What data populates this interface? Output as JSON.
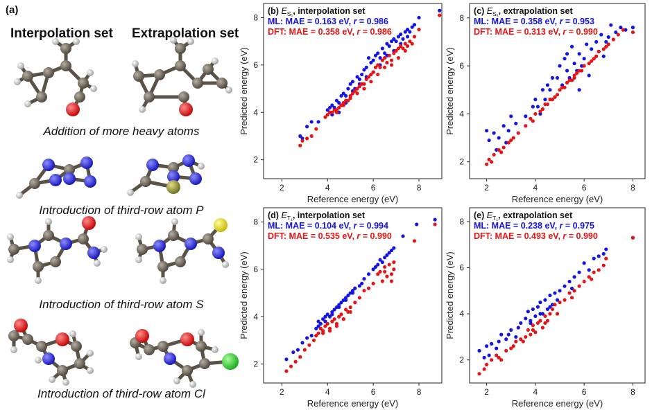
{
  "panel_a": {
    "label": "(a)",
    "col1": "Interpolation set",
    "col2": "Extrapolation set",
    "captions": [
      "Addition of more heavy atoms",
      "Introduction of third-row atom P",
      "Introduction of third-row atom S",
      "Introduction of third-row atom Cl"
    ]
  },
  "colors": {
    "ml": "#1414e6",
    "dft": "#e61414"
  },
  "chart_data": [
    {
      "type": "scatter",
      "panel": "(b)",
      "title_sym": "E",
      "title_sub": "S₁",
      "title_rest": ", interpolation set",
      "ml_label": "ML: MAE = 0.163 eV, ",
      "ml_r": " = 0.986",
      "dft_label": "DFT: MAE = 0.358 eV, ",
      "dft_r": " = 0.986",
      "xlabel": "Reference energy (eV)",
      "ylabel": "Predicted energy (eV)",
      "xlim": [
        1.2,
        9.0
      ],
      "ylim": [
        1.2,
        8.6
      ],
      "xticks": [
        2,
        4,
        6,
        8
      ],
      "yticks": [
        2,
        4,
        6,
        8
      ],
      "series": [
        {
          "name": "ML",
          "color": "ml",
          "x": [
            2.8,
            2.9,
            3.1,
            3.3,
            3.6,
            4.0,
            4.1,
            4.2,
            4.3,
            4.4,
            4.5,
            4.6,
            4.7,
            4.8,
            4.9,
            5.0,
            5.1,
            5.2,
            5.3,
            5.4,
            5.5,
            5.6,
            5.7,
            5.8,
            5.9,
            6.0,
            6.1,
            6.2,
            6.3,
            6.4,
            6.5,
            6.6,
            6.7,
            6.8,
            6.9,
            7.0,
            7.1,
            7.2,
            7.3,
            7.4,
            7.5,
            7.6,
            7.7,
            7.8,
            8.0,
            8.9,
            4.2,
            4.5,
            4.8,
            5.1,
            5.4,
            5.7,
            6.0,
            6.3,
            6.6,
            6.9,
            7.2,
            7.5
          ],
          "y": [
            3.0,
            2.9,
            3.4,
            3.6,
            3.6,
            4.1,
            4.2,
            4.3,
            4.2,
            4.5,
            4.4,
            4.7,
            4.8,
            4.7,
            5.0,
            5.2,
            5.3,
            5.0,
            5.5,
            5.4,
            5.6,
            5.8,
            5.9,
            6.3,
            6.1,
            6.2,
            6.4,
            6.5,
            6.3,
            6.7,
            6.5,
            6.9,
            6.8,
            7.0,
            7.1,
            7.0,
            7.2,
            7.3,
            7.1,
            7.4,
            7.5,
            7.4,
            7.6,
            7.7,
            8.0,
            8.3,
            3.9,
            4.0,
            4.4,
            4.9,
            5.2,
            5.5,
            5.7,
            6.0,
            6.4,
            6.6,
            6.9,
            7.2
          ]
        },
        {
          "name": "DFT",
          "color": "dft",
          "x": [
            2.8,
            2.9,
            3.1,
            3.3,
            3.5,
            3.9,
            4.0,
            4.2,
            4.3,
            4.4,
            4.5,
            4.6,
            4.7,
            4.8,
            4.9,
            5.0,
            5.1,
            5.2,
            5.3,
            5.4,
            5.5,
            5.6,
            5.7,
            5.8,
            5.9,
            6.0,
            6.1,
            6.2,
            6.3,
            6.4,
            6.5,
            6.6,
            6.7,
            6.8,
            6.9,
            7.0,
            7.1,
            7.2,
            7.3,
            7.4,
            7.5,
            7.6,
            7.8,
            8.0,
            8.9,
            4.1,
            4.4,
            4.7,
            5.0,
            5.3,
            5.6,
            5.9,
            6.2,
            6.5,
            6.8,
            7.1,
            7.4,
            7.7
          ],
          "y": [
            2.6,
            2.8,
            2.9,
            3.0,
            3.3,
            3.8,
            3.9,
            4.0,
            4.1,
            4.0,
            4.2,
            4.3,
            4.4,
            4.5,
            4.5,
            4.7,
            4.8,
            4.9,
            5.0,
            5.1,
            5.2,
            5.2,
            5.4,
            5.5,
            5.6,
            5.7,
            5.9,
            6.0,
            5.9,
            6.2,
            6.3,
            6.1,
            6.4,
            6.2,
            6.5,
            6.6,
            6.7,
            6.8,
            6.7,
            6.9,
            6.8,
            7.0,
            7.2,
            7.5,
            8.1,
            4.0,
            4.1,
            4.3,
            4.6,
            4.8,
            5.0,
            5.3,
            5.6,
            5.9,
            6.0,
            6.3,
            6.6,
            6.9
          ]
        }
      ]
    },
    {
      "type": "scatter",
      "panel": "(c)",
      "title_sym": "E",
      "title_sub": "S₁",
      "title_rest": ", extrapolation set",
      "ml_label": "ML: MAE = 0.358 eV, ",
      "ml_r": " = 0.953",
      "dft_label": "DFT: MAE = 0.313 eV, ",
      "dft_r": " = 0.990",
      "xlabel": "Reference energy (eV)",
      "ylabel": "Predicted energy (eV)",
      "xlim": [
        1.3,
        8.5
      ],
      "ylim": [
        1.3,
        8.6
      ],
      "xticks": [
        2,
        4,
        6,
        8
      ],
      "yticks": [
        2,
        4,
        6,
        8
      ],
      "series": [
        {
          "name": "ML",
          "color": "ml",
          "x": [
            2.0,
            2.1,
            2.3,
            2.5,
            2.7,
            2.9,
            3.0,
            3.2,
            3.6,
            3.9,
            4.0,
            4.1,
            4.3,
            4.4,
            4.5,
            4.6,
            4.8,
            4.9,
            5.0,
            5.1,
            5.2,
            5.3,
            5.4,
            5.5,
            5.6,
            5.7,
            5.8,
            5.9,
            6.0,
            6.1,
            6.3,
            6.5,
            6.6,
            6.7,
            6.9,
            7.0,
            7.1,
            7.3,
            7.5,
            7.7,
            8.0,
            2.4,
            2.8,
            4.2,
            4.7,
            5.3,
            5.8,
            6.2,
            6.8
          ],
          "y": [
            3.3,
            2.9,
            3.2,
            3.0,
            3.5,
            3.3,
            3.9,
            3.6,
            3.9,
            4.3,
            4.6,
            4.3,
            5.0,
            4.6,
            5.2,
            5.0,
            4.7,
            5.5,
            6.0,
            5.2,
            6.3,
            5.8,
            5.5,
            6.8,
            6.1,
            5.8,
            6.5,
            6.0,
            6.3,
            6.9,
            6.7,
            7.0,
            6.6,
            7.3,
            7.0,
            7.2,
            7.7,
            7.4,
            7.6,
            7.5,
            7.6,
            2.5,
            2.8,
            4.0,
            5.5,
            6.5,
            5.0,
            5.6,
            6.4
          ]
        },
        {
          "name": "DFT",
          "color": "dft",
          "x": [
            2.0,
            2.1,
            2.3,
            2.5,
            2.7,
            2.9,
            3.0,
            3.3,
            3.6,
            3.9,
            4.0,
            4.2,
            4.3,
            4.4,
            4.5,
            4.6,
            4.8,
            4.9,
            5.0,
            5.1,
            5.2,
            5.3,
            5.4,
            5.5,
            5.6,
            5.7,
            5.8,
            5.9,
            6.0,
            6.2,
            6.4,
            6.5,
            6.6,
            6.8,
            7.0,
            7.2,
            7.4,
            7.6,
            8.0,
            2.2,
            2.6,
            3.1,
            3.8,
            4.7,
            5.6,
            6.3,
            6.9
          ],
          "y": [
            1.9,
            2.1,
            2.3,
            2.5,
            2.6,
            2.8,
            2.9,
            3.2,
            3.5,
            3.7,
            4.0,
            4.1,
            4.2,
            4.4,
            4.4,
            4.6,
            4.7,
            4.8,
            5.0,
            5.1,
            5.1,
            5.3,
            5.4,
            5.4,
            5.6,
            5.7,
            5.8,
            5.8,
            6.0,
            6.1,
            6.3,
            6.4,
            6.6,
            6.7,
            6.9,
            7.1,
            7.3,
            7.5,
            7.4,
            2.0,
            2.4,
            3.0,
            3.8,
            4.6,
            5.5,
            6.2,
            6.8
          ]
        }
      ]
    },
    {
      "type": "scatter",
      "panel": "(d)",
      "title_sym": "E",
      "title_sub": "T₁",
      "title_rest": ", interpolation set",
      "ml_label": "ML: MAE = 0.104 eV, ",
      "ml_r": " = 0.994",
      "dft_label": "DFT: MAE = 0.535 eV, ",
      "dft_r": " = 0.990",
      "xlabel": "Reference energy (eV)",
      "ylabel": "Predicted energy (eV)",
      "xlim": [
        1.2,
        9.0
      ],
      "ylim": [
        1.2,
        8.6
      ],
      "xticks": [
        2,
        4,
        6,
        8
      ],
      "yticks": [
        2,
        4,
        6,
        8
      ],
      "series": [
        {
          "name": "ML",
          "color": "ml",
          "x": [
            2.2,
            2.5,
            2.7,
            2.9,
            3.1,
            3.3,
            3.5,
            3.6,
            3.7,
            3.8,
            3.9,
            4.0,
            4.1,
            4.2,
            4.3,
            4.4,
            4.5,
            4.6,
            4.7,
            4.8,
            4.9,
            5.0,
            5.1,
            5.2,
            5.4,
            5.6,
            5.8,
            6.0,
            6.2,
            6.3,
            6.4,
            6.5,
            6.6,
            6.7,
            6.8,
            6.9,
            7.3,
            7.9,
            8.7,
            3.6,
            3.9,
            4.2,
            4.5,
            4.8,
            5.1,
            5.5,
            6.1
          ],
          "y": [
            2.2,
            2.5,
            2.6,
            2.9,
            3.1,
            3.2,
            3.5,
            3.8,
            3.7,
            3.9,
            4.0,
            4.1,
            4.0,
            4.2,
            4.3,
            4.4,
            4.5,
            4.6,
            4.7,
            4.8,
            4.9,
            5.0,
            5.1,
            5.2,
            5.3,
            5.6,
            5.8,
            6.0,
            6.2,
            6.4,
            6.3,
            6.5,
            6.6,
            6.7,
            6.8,
            6.9,
            7.4,
            7.9,
            8.1,
            3.6,
            3.8,
            4.1,
            4.4,
            4.7,
            5.0,
            5.4,
            6.1
          ]
        },
        {
          "name": "DFT",
          "color": "dft",
          "x": [
            2.2,
            2.4,
            2.6,
            2.8,
            3.0,
            3.2,
            3.4,
            3.6,
            3.7,
            3.8,
            3.9,
            4.0,
            4.1,
            4.2,
            4.3,
            4.4,
            4.5,
            4.6,
            4.7,
            4.8,
            4.9,
            5.0,
            5.2,
            5.4,
            5.6,
            5.8,
            6.0,
            6.2,
            6.3,
            6.4,
            6.5,
            6.6,
            6.7,
            6.8,
            6.9,
            7.8,
            8.7,
            3.5,
            3.8,
            4.1,
            4.4,
            4.7,
            5.0,
            6.5,
            6.8,
            6.9
          ],
          "y": [
            1.7,
            1.9,
            2.1,
            2.3,
            2.6,
            2.8,
            3.0,
            3.3,
            3.5,
            3.4,
            3.6,
            3.7,
            3.5,
            3.8,
            3.9,
            3.7,
            4.0,
            4.1,
            3.9,
            4.3,
            4.2,
            4.4,
            4.6,
            4.8,
            5.1,
            5.2,
            5.4,
            5.8,
            5.9,
            5.5,
            6.1,
            5.7,
            6.2,
            5.8,
            6.3,
            7.2,
            7.9,
            3.2,
            3.3,
            3.4,
            3.6,
            3.9,
            4.2,
            5.9,
            5.5,
            6.0
          ]
        }
      ]
    },
    {
      "type": "scatter",
      "panel": "(e)",
      "title_sym": "E",
      "title_sub": "T₁",
      "title_rest": ", extrapolation set",
      "ml_label": "ML: MAE = 0.238 eV, ",
      "ml_r": " = 0.975",
      "dft_label": "DFT: MAE = 0.493 eV, ",
      "dft_r": " = 0.990",
      "xlabel": "Reference energy (eV)",
      "ylabel": "Predicted energy (eV)",
      "xlim": [
        1.3,
        8.5
      ],
      "ylim": [
        1.0,
        8.6
      ],
      "xticks": [
        2,
        4,
        6,
        8
      ],
      "yticks": [
        2,
        4,
        6,
        8
      ],
      "series": [
        {
          "name": "ML",
          "color": "ml",
          "x": [
            1.7,
            1.9,
            2.0,
            2.2,
            2.4,
            2.6,
            2.8,
            3.0,
            3.2,
            3.4,
            3.6,
            3.7,
            3.8,
            3.9,
            4.0,
            4.1,
            4.2,
            4.3,
            4.4,
            4.5,
            4.6,
            4.7,
            4.8,
            4.9,
            5.0,
            5.2,
            5.4,
            5.6,
            5.8,
            6.0,
            6.2,
            6.4,
            6.6,
            6.8,
            6.9,
            8.0,
            2.1,
            2.5,
            2.9,
            3.3,
            3.8,
            4.2,
            4.6,
            5.5
          ],
          "y": [
            2.4,
            2.1,
            2.6,
            2.7,
            2.5,
            3.1,
            2.9,
            3.3,
            3.0,
            3.6,
            3.8,
            4.1,
            3.7,
            4.2,
            3.9,
            4.3,
            4.5,
            4.0,
            4.6,
            4.2,
            4.8,
            4.4,
            4.9,
            4.6,
            5.0,
            5.2,
            5.4,
            5.6,
            5.8,
            6.2,
            5.9,
            6.4,
            6.5,
            6.6,
            6.8,
            7.3,
            2.2,
            2.8,
            3.1,
            3.4,
            3.6,
            4.0,
            4.3,
            5.1
          ]
        },
        {
          "name": "DFT",
          "color": "dft",
          "x": [
            1.7,
            1.9,
            2.0,
            2.2,
            2.4,
            2.6,
            2.8,
            3.0,
            3.2,
            3.4,
            3.6,
            3.7,
            3.8,
            3.9,
            4.0,
            4.1,
            4.2,
            4.3,
            4.4,
            4.5,
            4.6,
            4.7,
            4.8,
            5.0,
            5.2,
            5.4,
            5.6,
            5.8,
            6.0,
            6.2,
            6.4,
            6.6,
            6.8,
            6.9,
            8.0,
            2.5,
            3.1,
            3.5,
            3.9,
            4.4,
            4.9,
            5.5,
            6.3
          ],
          "y": [
            1.4,
            1.6,
            1.8,
            2.0,
            2.2,
            2.0,
            2.4,
            2.5,
            2.8,
            2.9,
            3.0,
            3.3,
            3.1,
            3.5,
            3.2,
            3.6,
            3.7,
            3.4,
            3.9,
            3.7,
            4.0,
            4.2,
            4.4,
            4.5,
            4.6,
            4.9,
            5.0,
            5.2,
            5.4,
            5.6,
            5.8,
            5.9,
            6.1,
            6.4,
            7.3,
            2.1,
            2.6,
            2.8,
            3.3,
            3.6,
            4.0,
            4.7,
            5.5
          ]
        }
      ]
    }
  ]
}
